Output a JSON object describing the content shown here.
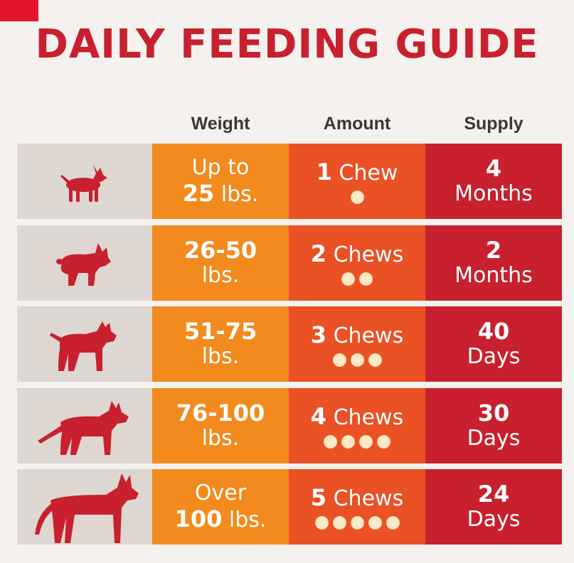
{
  "title": "DAILY FEEDING GUIDE",
  "headers": {
    "weight": "Weight",
    "amount": "Amount",
    "supply": "Supply"
  },
  "colors": {
    "title": "#c8202e",
    "weight_col": "#f28a1e",
    "amount_col": "#ea5125",
    "supply_col": "#c8202e",
    "dog_col": "#ded6d0",
    "dog_silhouette": "#c8202e"
  },
  "rows": [
    {
      "dog_icon": "chihuahua-icon",
      "weight_top": "Up to",
      "weight_num": "25",
      "weight_unit": "lbs.",
      "amount_num": "1",
      "amount_word": "Chew",
      "chews": 1,
      "supply_num": "4",
      "supply_unit": "Months"
    },
    {
      "dog_icon": "french-bulldog-icon",
      "weight_top": "26-50",
      "weight_bottom": "lbs.",
      "amount_num": "2",
      "amount_word": "Chews",
      "chews": 2,
      "supply_num": "2",
      "supply_unit": "Months"
    },
    {
      "dog_icon": "pit-bull-icon",
      "weight_top": "51-75",
      "weight_bottom": "lbs.",
      "amount_num": "3",
      "amount_word": "Chews",
      "chews": 3,
      "supply_num": "40",
      "supply_unit": "Days"
    },
    {
      "dog_icon": "german-shepherd-icon",
      "weight_top": "76-100",
      "weight_bottom": "lbs.",
      "amount_num": "4",
      "amount_word": "Chews",
      "chews": 4,
      "supply_num": "30",
      "supply_unit": "Days"
    },
    {
      "dog_icon": "great-dane-icon",
      "weight_top": "Over",
      "weight_num": "100",
      "weight_unit": "lbs.",
      "amount_num": "5",
      "amount_word": "Chews",
      "chews": 5,
      "supply_num": "24",
      "supply_unit": "Days"
    }
  ]
}
